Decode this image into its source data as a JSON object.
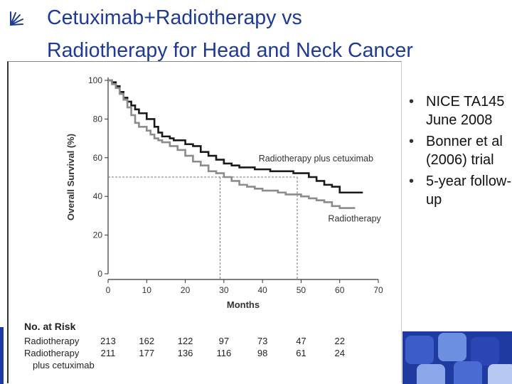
{
  "title": {
    "line1": "Cetuximab+Radiotherapy vs",
    "line2": "Radiotherapy for Head and Neck Cancer"
  },
  "bullets": [
    "NICE TA145 June 2008",
    "Bonner et al (2006) trial",
    "5-year follow-up"
  ],
  "colors": {
    "title": "#1f3a93",
    "series_cetuximab": "#1a1a1a",
    "series_radiotherapy": "#8c8c8c",
    "decor_blue": "#1f3aa0"
  },
  "icons": {
    "title_bullet": "fan-icon"
  },
  "chart_data": {
    "type": "line",
    "ylabel": "Overall Survival (%)",
    "xlabel": "Months",
    "xlim": [
      0,
      70
    ],
    "ylim": [
      0,
      100
    ],
    "xticks": [
      0,
      10,
      20,
      30,
      40,
      50,
      60,
      70
    ],
    "yticks": [
      0,
      20,
      40,
      60,
      80,
      100
    ],
    "grid": false,
    "reference_lines": {
      "median_survival_y": 50,
      "median_x": [
        29,
        49
      ]
    },
    "series": [
      {
        "name": "Radiotherapy plus cetuximab",
        "x": [
          0,
          1,
          2,
          3,
          4,
          5,
          6,
          7,
          8,
          10,
          12,
          13,
          14,
          15,
          16,
          17,
          18,
          20,
          22,
          24,
          26,
          28,
          30,
          32,
          34,
          36,
          38,
          40,
          42,
          44,
          46,
          48,
          50,
          52,
          54,
          56,
          58,
          60,
          62,
          66
        ],
        "y": [
          100,
          99,
          97,
          94,
          91,
          89,
          87,
          85,
          83,
          80,
          76,
          73,
          71,
          71,
          70,
          69,
          69,
          67,
          66,
          63,
          61,
          59,
          57,
          56,
          55,
          55,
          54,
          54,
          53,
          53,
          53,
          52,
          52,
          50,
          48,
          46,
          45,
          42,
          42,
          42
        ]
      },
      {
        "name": "Radiotherapy",
        "x": [
          0,
          1,
          2,
          3,
          4,
          5,
          6,
          7,
          8,
          10,
          11,
          12,
          13,
          14,
          16,
          18,
          20,
          22,
          24,
          26,
          28,
          30,
          32,
          34,
          36,
          38,
          40,
          42,
          44,
          46,
          48,
          50,
          52,
          54,
          56,
          58,
          60,
          62,
          64
        ],
        "y": [
          100,
          98,
          96,
          93,
          90,
          86,
          82,
          78,
          76,
          74,
          72,
          70,
          69,
          68,
          66,
          64,
          61,
          58,
          56,
          53,
          52,
          50,
          48,
          46,
          45,
          44,
          43,
          43,
          42,
          41,
          41,
          40,
          39,
          38,
          37,
          35,
          34,
          34,
          34
        ]
      }
    ],
    "series_labels": [
      {
        "text": "Radiotherapy plus cetuximab",
        "series": 0
      },
      {
        "text": "Radiotherapy",
        "series": 1
      }
    ],
    "risk_table": {
      "title": "No. at Risk",
      "rows": [
        {
          "label": "Radiotherapy",
          "label2": "",
          "values": [
            "213",
            "162",
            "122",
            "97",
            "73",
            "47",
            "22"
          ]
        },
        {
          "label": "Radiotherapy",
          "label2": "plus cetuximab",
          "values": [
            "211",
            "177",
            "136",
            "116",
            "98",
            "61",
            "24"
          ]
        }
      ]
    }
  }
}
